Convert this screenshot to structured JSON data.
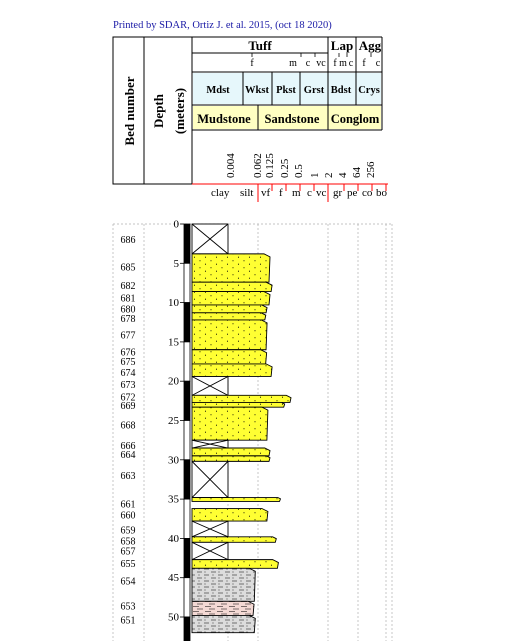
{
  "header": {
    "printed_by": "Printed by SDAR, Ortiz J. et al. 2015, (oct 18 2020)",
    "bed_number_label": "Bed number",
    "depth_label": "Depth",
    "depth_unit": "(meters)",
    "tuff_label": "Tuff",
    "tuff_sizes": [
      "f",
      "m",
      "c",
      "vc"
    ],
    "lap_label": "Lap",
    "lap_sizes": [
      "f",
      "m",
      "c"
    ],
    "agg_label": "Agg",
    "agg_sizes": [
      "f",
      "c"
    ],
    "carbonate_classes": [
      "Mdst",
      "Wkst",
      "Pkst",
      "Grst",
      "Bdst",
      "Crys"
    ],
    "siliciclastic_groups": [
      "Mudstone",
      "Sandstone",
      "Conglom"
    ],
    "grain_size_mm": [
      "0.004",
      "0.062",
      "0.125",
      "0.25",
      "0.5",
      "1",
      "2",
      "4",
      "64",
      "256"
    ],
    "grain_size_classes": [
      "clay",
      "silt",
      "vf",
      "f",
      "m",
      "c",
      "vc",
      "gr",
      "pe",
      "co",
      "bo"
    ]
  },
  "depth_ticks": [
    "0",
    "5",
    "10",
    "15",
    "20",
    "25",
    "30",
    "35",
    "40",
    "45",
    "50"
  ],
  "bed_labels": [
    {
      "bed": "686",
      "depth": 2.0
    },
    {
      "bed": "685",
      "depth": 5.5
    },
    {
      "bed": "682",
      "depth": 7.8
    },
    {
      "bed": "681",
      "depth": 9.4
    },
    {
      "bed": "680",
      "depth": 10.8
    },
    {
      "bed": "678",
      "depth": 12.0
    },
    {
      "bed": "677",
      "depth": 14.1
    },
    {
      "bed": "676",
      "depth": 16.3
    },
    {
      "bed": "675",
      "depth": 17.5
    },
    {
      "bed": "674",
      "depth": 18.9
    },
    {
      "bed": "673",
      "depth": 20.4
    },
    {
      "bed": "672",
      "depth": 22.0
    },
    {
      "bed": "669",
      "depth": 23.1
    },
    {
      "bed": "668",
      "depth": 25.6
    },
    {
      "bed": "666",
      "depth": 28.2
    },
    {
      "bed": "664",
      "depth": 29.3
    },
    {
      "bed": "663",
      "depth": 32.0
    },
    {
      "bed": "661",
      "depth": 35.6
    },
    {
      "bed": "660",
      "depth": 37.0
    },
    {
      "bed": "659",
      "depth": 38.9
    },
    {
      "bed": "658",
      "depth": 40.3
    },
    {
      "bed": "657",
      "depth": 41.6
    },
    {
      "bed": "655",
      "depth": 43.2
    },
    {
      "bed": "654",
      "depth": 45.4
    },
    {
      "bed": "653",
      "depth": 48.6
    },
    {
      "bed": "651",
      "depth": 50.4
    }
  ],
  "beds": [
    {
      "bed": "686",
      "top": 0.0,
      "base": 3.8,
      "lithology": "covered",
      "size": 0
    },
    {
      "bed": "685",
      "top": 3.8,
      "base": 7.4,
      "lithology": "sandstone",
      "size": 1.0
    },
    {
      "bed": "682",
      "top": 7.4,
      "base": 8.6,
      "lithology": "sandstone",
      "size": 1.05
    },
    {
      "bed": "681",
      "top": 8.6,
      "base": 10.3,
      "lithology": "sandstone",
      "size": 1.0
    },
    {
      "bed": "680",
      "top": 10.3,
      "base": 11.3,
      "lithology": "sandstone",
      "size": 0.93
    },
    {
      "bed": "678",
      "top": 11.3,
      "base": 12.2,
      "lithology": "sandstone",
      "size": 0.9
    },
    {
      "bed": "677",
      "top": 12.2,
      "base": 16.0,
      "lithology": "sandstone",
      "size": 0.93
    },
    {
      "bed": "676",
      "top": 16.0,
      "base": 17.8,
      "lithology": "sandstone",
      "size": 0.92
    },
    {
      "bed": "675",
      "top": 17.8,
      "base": 19.4,
      "lithology": "sandstone",
      "size": 1.05
    },
    {
      "bed": "673",
      "top": 19.4,
      "base": 21.8,
      "lithology": "covered",
      "size": 0
    },
    {
      "bed": "672",
      "top": 21.8,
      "base": 22.7,
      "lithology": "sandstone",
      "size": 1.5
    },
    {
      "bed": "669",
      "top": 22.7,
      "base": 23.3,
      "lithology": "sandstone",
      "size": 1.35
    },
    {
      "bed": "668",
      "top": 23.3,
      "base": 27.5,
      "lithology": "sandstone",
      "size": 0.95
    },
    {
      "bed": "666",
      "top": 27.5,
      "base": 28.5,
      "lithology": "covered",
      "size": 0
    },
    {
      "bed": "664",
      "top": 28.5,
      "base": 29.5,
      "lithology": "sandstone",
      "size": 1.0
    },
    {
      "bed": "664b",
      "top": 29.5,
      "base": 30.2,
      "lithology": "sandstone",
      "size": 1.0
    },
    {
      "bed": "663",
      "top": 30.2,
      "base": 34.8,
      "lithology": "covered",
      "size": 0
    },
    {
      "bed": "661",
      "top": 34.8,
      "base": 35.3,
      "lithology": "sandstone",
      "size": 1.25
    },
    {
      "bed": "660",
      "top": 36.2,
      "base": 37.8,
      "lithology": "sandstone",
      "size": 0.95
    },
    {
      "bed": "659",
      "top": 37.8,
      "base": 39.8,
      "lithology": "covered",
      "size": 0
    },
    {
      "bed": "658",
      "top": 39.8,
      "base": 40.5,
      "lithology": "sandstone",
      "size": 1.15
    },
    {
      "bed": "657",
      "top": 40.5,
      "base": 42.7,
      "lithology": "covered",
      "size": 0
    },
    {
      "bed": "655",
      "top": 42.7,
      "base": 43.8,
      "lithology": "sandstone",
      "size": 1.2
    },
    {
      "bed": "654",
      "top": 43.8,
      "base": 48.0,
      "lithology": "siltstone",
      "size": 0.65
    },
    {
      "bed": "653",
      "top": 48.0,
      "base": 49.8,
      "lithology": "claystone",
      "size": 0.62
    },
    {
      "bed": "651",
      "top": 49.8,
      "base": 52.0,
      "lithology": "siltstone",
      "size": 0.65
    }
  ],
  "colors": {
    "sandstone": "#ffff33",
    "siltstone": "#dcdcdc",
    "claystone": "#f4d9d4",
    "covered": "#ffffff",
    "carbonate_row": "#e6f7fb",
    "siliciclastic_row": "#ffffc2",
    "scale_red": "#ff0000",
    "title_blue": "#1a1aa6"
  }
}
